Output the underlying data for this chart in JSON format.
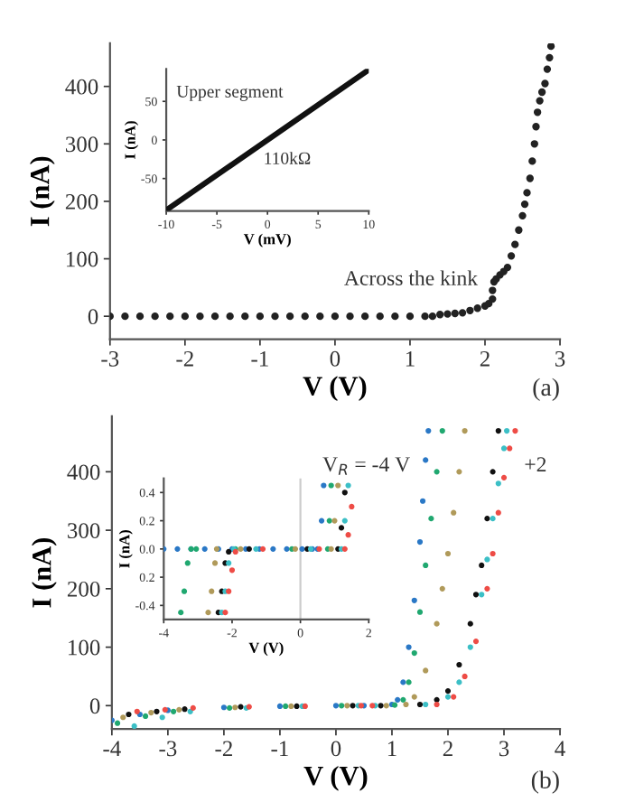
{
  "chart_data": [
    {
      "type": "scatter",
      "xlabel": "V (V)",
      "ylabel": "I (nA)",
      "xlim": [
        -3,
        3
      ],
      "ylim": [
        -40,
        475
      ],
      "xticks": [
        -3,
        -2,
        -1,
        0,
        1,
        2,
        3
      ],
      "yticks": [
        0,
        100,
        200,
        300,
        400
      ],
      "grid": false,
      "marker": "circle",
      "annotations": [
        "Across the kink",
        "(a)"
      ],
      "series": [
        {
          "color": "#222222",
          "x": [
            -3,
            -2.8,
            -2.6,
            -2.4,
            -2.2,
            -2,
            -1.8,
            -1.6,
            -1.4,
            -1.2,
            -1,
            -0.8,
            -0.6,
            -0.4,
            -0.2,
            0,
            0.2,
            0.4,
            0.6,
            0.8,
            1,
            1.2,
            1.3,
            1.4,
            1.5,
            1.6,
            1.7,
            1.8,
            1.9,
            2.0,
            2.05,
            2.1,
            2.1,
            2.12,
            2.15,
            2.2,
            2.25,
            2.3,
            2.35,
            2.4,
            2.45,
            2.5,
            2.53,
            2.56,
            2.6,
            2.63,
            2.66,
            2.68,
            2.7,
            2.73,
            2.76,
            2.8,
            2.83,
            2.86,
            2.88
          ],
          "values": [
            0,
            0,
            0,
            0,
            0,
            0,
            0,
            0,
            0,
            0,
            0,
            0,
            0,
            0,
            0,
            0,
            0,
            0,
            0,
            0,
            0,
            0,
            0,
            3,
            4,
            5,
            6,
            10,
            14,
            18,
            22,
            30,
            45,
            60,
            65,
            72,
            78,
            85,
            105,
            125,
            150,
            175,
            195,
            215,
            240,
            270,
            300,
            330,
            355,
            375,
            390,
            405,
            430,
            450,
            470
          ]
        }
      ]
    },
    {
      "type": "line",
      "xlabel": "V (mV)",
      "ylabel": "I (nA)",
      "xlim": [
        -10,
        10
      ],
      "ylim": [
        -92,
        92
      ],
      "xticks": [
        -10,
        -5,
        0,
        5,
        10
      ],
      "yticks": [
        -50,
        0,
        50
      ],
      "grid": false,
      "marker": "none",
      "line_style": "solid",
      "annotations": [
        "Upper segment",
        "110kΩ"
      ],
      "series": [
        {
          "color": "#111111",
          "x": [
            -10,
            10
          ],
          "values": [
            -91,
            91
          ]
        }
      ]
    },
    {
      "type": "scatter",
      "xlabel": "V (V)",
      "ylabel": "I (nA)",
      "xlim": [
        -4,
        4
      ],
      "ylim": [
        -40,
        495
      ],
      "xticks": [
        -4,
        -3,
        -2,
        -1,
        0,
        1,
        2,
        3,
        4
      ],
      "yticks": [
        0,
        100,
        200,
        300,
        400
      ],
      "grid": false,
      "marker": "circle",
      "annotations": [
        "V$_{R}$ = -4 V",
        "+2",
        "(b)"
      ],
      "series": [
        {
          "color": "#2a78c6",
          "x": [
            -4,
            -3.5,
            -3,
            -2,
            -1,
            0,
            0.5,
            1,
            1.1,
            1.2,
            1.3,
            1.4,
            1.5,
            1.55,
            1.6,
            1.65
          ],
          "values": [
            -25,
            -15,
            -8,
            -3,
            -1,
            0,
            0,
            2,
            10,
            40,
            100,
            180,
            280,
            350,
            420,
            470
          ]
        },
        {
          "color": "#20a870",
          "x": [
            -3.9,
            -3.4,
            -2.9,
            -1.9,
            -0.9,
            0.1,
            1.05,
            1.2,
            1.3,
            1.4,
            1.5,
            1.6,
            1.7,
            1.8,
            1.9
          ],
          "values": [
            -30,
            -18,
            -10,
            -4,
            -1,
            0,
            1,
            10,
            40,
            90,
            160,
            240,
            320,
            400,
            470
          ]
        },
        {
          "color": "#b09a5a",
          "x": [
            -3.8,
            -3.3,
            -2.8,
            -1.8,
            -0.8,
            0.2,
            0.9,
            1.25,
            1.4,
            1.6,
            1.8,
            1.9,
            2.0,
            2.1,
            2.2,
            2.3
          ],
          "values": [
            -20,
            -12,
            -7,
            -3,
            -1,
            0,
            0,
            2,
            15,
            60,
            140,
            200,
            260,
            330,
            400,
            470
          ]
        },
        {
          "color": "#111111",
          "x": [
            -3.7,
            -3.2,
            -2.7,
            -1.7,
            -0.7,
            0.3,
            0.8,
            1.5,
            1.8,
            2.0,
            2.2,
            2.4,
            2.5,
            2.6,
            2.7,
            2.8,
            2.9
          ],
          "values": [
            -15,
            -10,
            -6,
            -2,
            -1,
            0,
            0,
            2,
            10,
            25,
            70,
            140,
            190,
            240,
            320,
            400,
            470
          ]
        },
        {
          "color": "#3cbfc6",
          "x": [
            -3.6,
            -3.1,
            -2.6,
            -1.6,
            -0.6,
            0.4,
            0.7,
            1.6,
            2.0,
            2.2,
            2.4,
            2.6,
            2.7,
            2.8,
            2.9,
            3.0,
            3.05
          ],
          "values": [
            -35,
            -20,
            -10,
            -4,
            -1,
            0,
            0,
            2,
            15,
            40,
            100,
            190,
            250,
            320,
            380,
            440,
            470
          ]
        },
        {
          "color": "#ee4c46",
          "x": [
            -3.55,
            -3.05,
            -2.55,
            -1.55,
            -0.55,
            0.45,
            0.65,
            1.8,
            2.1,
            2.3,
            2.5,
            2.7,
            2.8,
            2.9,
            3.0,
            3.1,
            3.2
          ],
          "values": [
            -10,
            -7,
            -4,
            -2,
            -1,
            0,
            0,
            2,
            15,
            50,
            110,
            200,
            260,
            330,
            390,
            440,
            470
          ]
        }
      ]
    },
    {
      "type": "scatter",
      "xlabel": "V (V)",
      "ylabel": "I (nA)",
      "xlim": [
        -4,
        2
      ],
      "ylim": [
        -0.5,
        0.5
      ],
      "xticks": [
        -4,
        -2,
        0,
        2
      ],
      "yticks": [
        {
          "value": -0.4,
          "label": "-0.4"
        },
        {
          "value": -0.2,
          "label": "0.2"
        },
        {
          "value": 0.0,
          "label": "0.0"
        },
        {
          "value": 0.2,
          "label": "0.2"
        },
        {
          "value": 0.4,
          "label": "0.4"
        }
      ],
      "grid": false,
      "marker": "circle",
      "ref_lines": [
        {
          "axis": "x",
          "value": 0,
          "color": "#cccccc"
        }
      ],
      "series": [
        {
          "color": "#2a78c6",
          "x": [
            -4,
            -3.6,
            -3.2,
            -2.8,
            -2.4,
            -2.0,
            -1.6,
            -1.2,
            -0.8,
            -0.4,
            0.05,
            0.35,
            0.5,
            0.62,
            0.68
          ],
          "values": [
            0,
            0,
            0,
            0,
            0,
            0,
            0,
            0,
            0,
            0,
            0,
            0,
            0,
            0.2,
            0.45
          ]
        },
        {
          "color": "#20a870",
          "x": [
            -3.5,
            -3.4,
            -3.3,
            -3.2,
            -3.05,
            -1.9,
            -0.25,
            0.8,
            0.85,
            0.9
          ],
          "values": [
            -0.45,
            -0.3,
            -0.1,
            0,
            0,
            0,
            0,
            0,
            0.2,
            0.45
          ]
        },
        {
          "color": "#b09a5a",
          "x": [
            -2.7,
            -2.6,
            -2.5,
            -2.45,
            -1.75,
            -0.15,
            0.9,
            1.0,
            1.1
          ],
          "values": [
            -0.45,
            -0.3,
            -0.1,
            0,
            0,
            0,
            0,
            0.2,
            0.45
          ]
        },
        {
          "color": "#111111",
          "x": [
            -2.4,
            -2.3,
            -2.2,
            -2.1,
            -1.5,
            0.2,
            1.1,
            1.2,
            1.3
          ],
          "values": [
            -0.45,
            -0.3,
            -0.1,
            -0.02,
            0,
            0,
            0,
            0.15,
            0.4
          ]
        },
        {
          "color": "#3cbfc6",
          "x": [
            -2.3,
            -2.2,
            -2.1,
            -1.95,
            -1.3,
            0.3,
            1.2,
            1.3,
            1.4
          ],
          "values": [
            -0.45,
            -0.3,
            -0.1,
            0,
            0,
            0,
            0,
            0.2,
            0.45
          ]
        },
        {
          "color": "#ee4c46",
          "x": [
            -2.2,
            -2.1,
            -2.0,
            -1.9,
            -1.1,
            0.55,
            1.3,
            1.4,
            1.5
          ],
          "values": [
            -0.45,
            -0.3,
            -0.15,
            -0.02,
            0,
            0,
            0,
            0.1,
            0.3
          ]
        }
      ]
    }
  ]
}
